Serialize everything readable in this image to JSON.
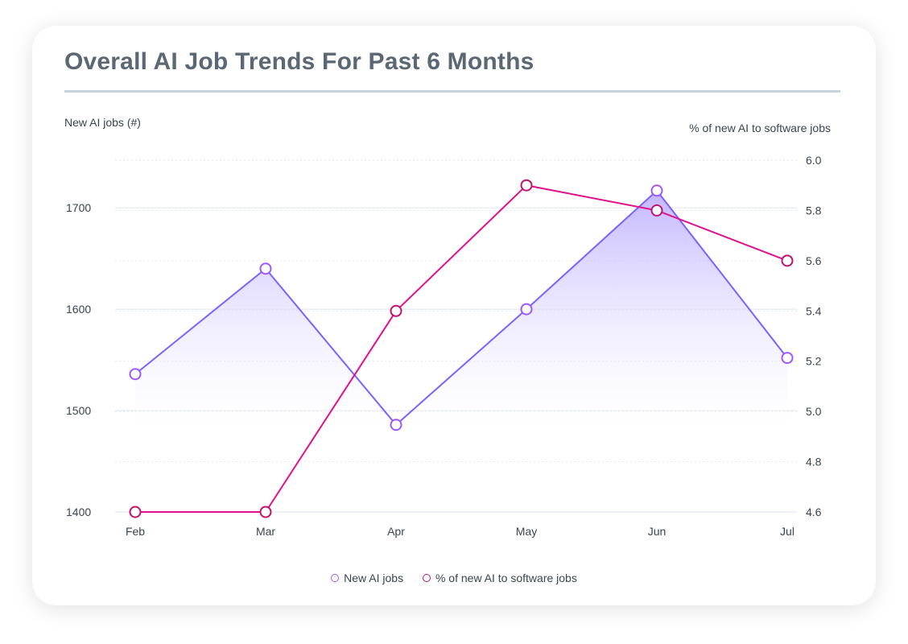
{
  "chart_data": {
    "type": "line",
    "title": "Overall AI Job Trends For Past 6 Months",
    "categories": [
      "Feb",
      "Mar",
      "Apr",
      "May",
      "Jun",
      "Jul"
    ],
    "y_left": {
      "label": "New AI jobs (#)",
      "ticks": [
        1400,
        1500,
        1600,
        1700
      ],
      "range": [
        1400,
        1747
      ]
    },
    "y_right": {
      "label": "% of new AI to software jobs",
      "ticks": [
        "4.6",
        "4.8",
        "5.0",
        "5.2",
        "5.4",
        "5.6",
        "5.8",
        "6.0"
      ],
      "range": [
        4.6,
        6.0
      ]
    },
    "series": [
      {
        "name": "New AI jobs",
        "axis": "left",
        "values": [
          1536,
          1640,
          1486,
          1600,
          1717,
          1552
        ],
        "color": "#7b61ff",
        "area": true
      },
      {
        "name": "% of new AI to software jobs",
        "axis": "right",
        "values": [
          4.6,
          4.6,
          5.4,
          5.9,
          5.8,
          5.6
        ],
        "color": "#e0118a"
      }
    ],
    "grid": true,
    "legend": "bottom"
  }
}
